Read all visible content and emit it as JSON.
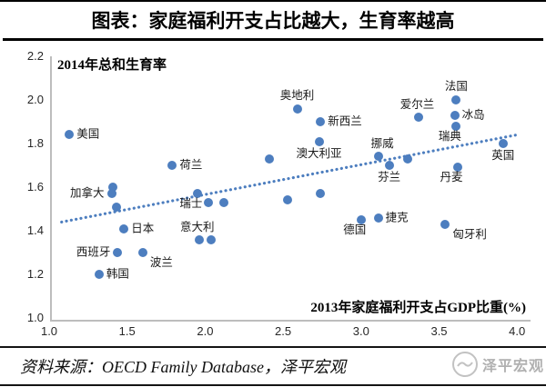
{
  "header": {
    "title": "图表：家庭福利开支占比越大，生育率越高"
  },
  "footer": {
    "source": "资料来源：OECD Family Database，泽平宏观",
    "watermark": "泽平宏观"
  },
  "colors": {
    "accent_blue": "#4d7ebf",
    "axis_gray": "#bdbdbd",
    "rule_black": "#000000",
    "watermark_gray": "#c2c2c2"
  },
  "chart_data": {
    "type": "scatter",
    "title": "图表：家庭福利开支占比越大，生育率越高",
    "xlabel": "2013年家庭福利开支占GDP比重(%)",
    "ylabel": "2014年总和生育率",
    "xlim": [
      1.0,
      4.08
    ],
    "ylim": [
      1.0,
      2.2
    ],
    "x_ticks": [
      "1.0",
      "1.5",
      "2.0",
      "2.5",
      "3.0",
      "3.5",
      "4.0"
    ],
    "y_ticks": [
      "2.2",
      "2.0",
      "1.8",
      "1.6",
      "1.4",
      "1.2",
      "1.0"
    ],
    "grid": false,
    "legend": "none",
    "point_color": "#4d7ebf",
    "trendline": {
      "style": "dotted",
      "color": "#4d7ebf",
      "x1": 1.08,
      "y1": 1.44,
      "x2": 4.0,
      "y2": 1.84
    },
    "points": [
      {
        "x": 1.13,
        "y": 1.84,
        "label": "美国",
        "labelPos": "r"
      },
      {
        "x": 1.41,
        "y": 1.6,
        "label": "",
        "labelPos": ""
      },
      {
        "x": 1.4,
        "y": 1.57,
        "label": "加拿大",
        "labelPos": "l"
      },
      {
        "x": 1.43,
        "y": 1.51,
        "label": "",
        "labelPos": ""
      },
      {
        "x": 1.79,
        "y": 1.7,
        "label": "荷兰",
        "labelPos": "r"
      },
      {
        "x": 1.48,
        "y": 1.41,
        "label": "日本",
        "labelPos": "r"
      },
      {
        "x": 1.44,
        "y": 1.3,
        "label": "西班牙",
        "labelPos": "l"
      },
      {
        "x": 1.6,
        "y": 1.3,
        "label": "波兰",
        "labelPos": "br"
      },
      {
        "x": 1.32,
        "y": 1.2,
        "label": "韩国",
        "labelPos": "r"
      },
      {
        "x": 1.95,
        "y": 1.57,
        "label": "瑞士",
        "labelPos": "bl"
      },
      {
        "x": 2.02,
        "y": 1.53,
        "label": "",
        "labelPos": ""
      },
      {
        "x": 2.12,
        "y": 1.53,
        "label": "",
        "labelPos": ""
      },
      {
        "x": 1.96,
        "y": 1.36,
        "label": "意大利",
        "labelPos": "tl"
      },
      {
        "x": 2.04,
        "y": 1.36,
        "label": "",
        "labelPos": ""
      },
      {
        "x": 2.41,
        "y": 1.73,
        "label": "",
        "labelPos": ""
      },
      {
        "x": 2.53,
        "y": 1.54,
        "label": "",
        "labelPos": ""
      },
      {
        "x": 2.74,
        "y": 1.57,
        "label": "",
        "labelPos": ""
      },
      {
        "x": 2.59,
        "y": 1.96,
        "label": "奥地利",
        "labelPos": "t"
      },
      {
        "x": 2.74,
        "y": 1.9,
        "label": "新西兰",
        "labelPos": "r"
      },
      {
        "x": 2.73,
        "y": 1.81,
        "label": "澳大利亚",
        "labelPos": "b"
      },
      {
        "x": 3.11,
        "y": 1.74,
        "label": "挪威",
        "labelPos": "tl"
      },
      {
        "x": 3.18,
        "y": 1.7,
        "label": "芬兰",
        "labelPos": "b"
      },
      {
        "x": 3.3,
        "y": 1.73,
        "label": "",
        "labelPos": ""
      },
      {
        "x": 3.37,
        "y": 1.92,
        "label": "爱尔兰",
        "labelPos": "tl"
      },
      {
        "x": 3.61,
        "y": 2.0,
        "label": "法国",
        "labelPos": "t"
      },
      {
        "x": 3.6,
        "y": 1.93,
        "label": "冰岛",
        "labelPos": "r"
      },
      {
        "x": 3.61,
        "y": 1.88,
        "label": "瑞典",
        "labelPos": "bl"
      },
      {
        "x": 3.62,
        "y": 1.69,
        "label": "丹麦",
        "labelPos": "bl"
      },
      {
        "x": 3.91,
        "y": 1.8,
        "label": "英国",
        "labelPos": "b"
      },
      {
        "x": 3.0,
        "y": 1.45,
        "label": "德国",
        "labelPos": "bl"
      },
      {
        "x": 3.11,
        "y": 1.46,
        "label": "捷克",
        "labelPos": "r"
      },
      {
        "x": 3.54,
        "y": 1.43,
        "label": "匈牙利",
        "labelPos": "br"
      }
    ]
  }
}
